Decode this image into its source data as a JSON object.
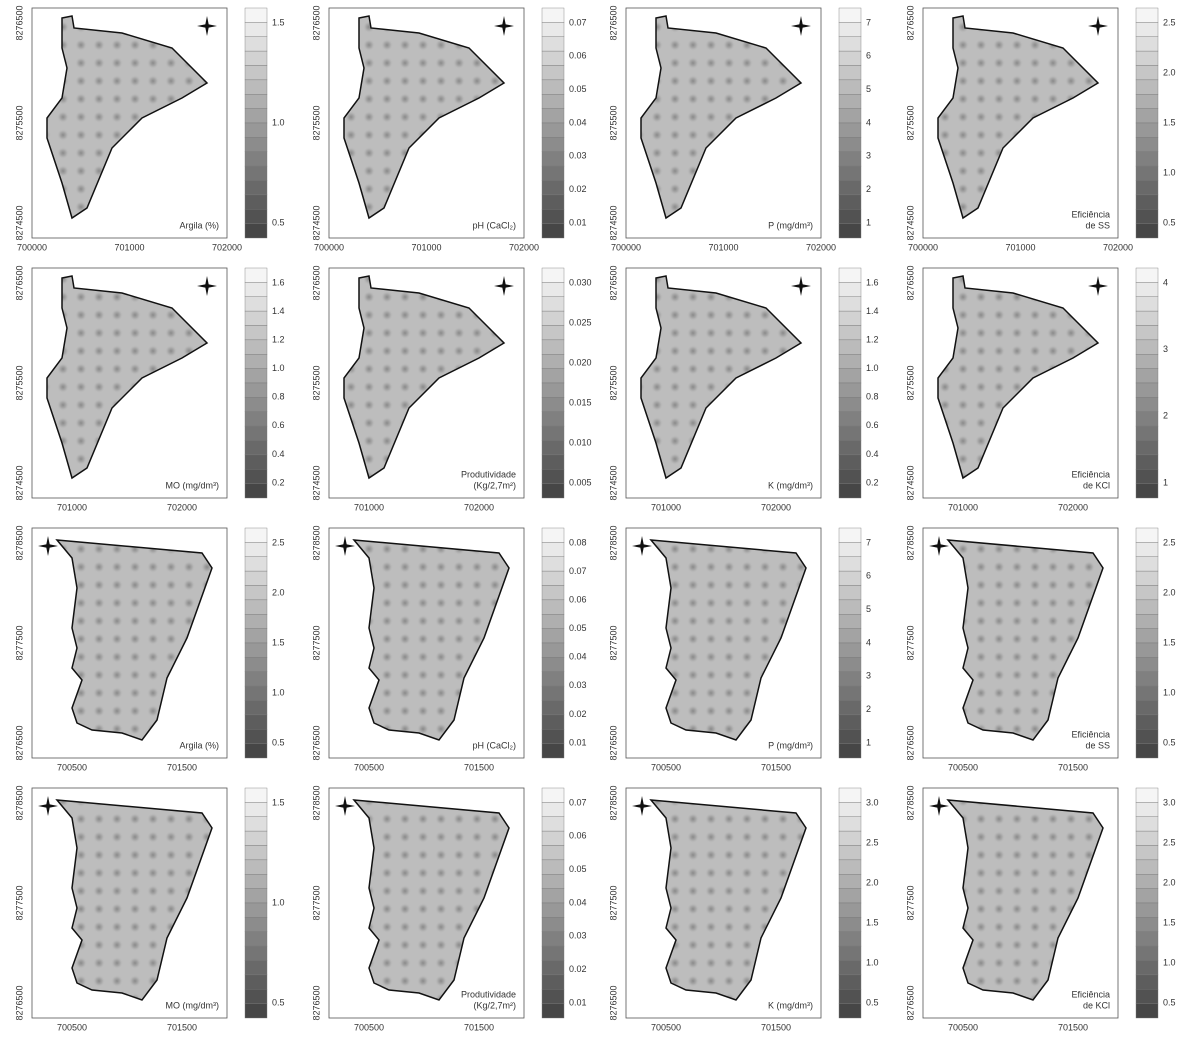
{
  "rows": [
    {
      "x_ticks": [
        "700000",
        "701000",
        "702000"
      ],
      "y_ticks": [
        "8274500",
        "8275500",
        "8276500"
      ],
      "panels": [
        {
          "label": [
            "Argila (%)"
          ],
          "scale": [
            "1.5",
            "1.0",
            "0.5"
          ]
        },
        {
          "label": [
            "pH (CaCl₂)"
          ],
          "scale": [
            "0.07",
            "0.06",
            "0.05",
            "0.04",
            "0.03",
            "0.02",
            "0.01"
          ]
        },
        {
          "label": [
            "P (mg/dm³)"
          ],
          "scale": [
            "7",
            "6",
            "5",
            "4",
            "3",
            "2",
            "1"
          ]
        },
        {
          "label": [
            "Eficiência",
            "de SS"
          ],
          "scale": [
            "2.5",
            "2.0",
            "1.5",
            "1.0",
            "0.5"
          ]
        }
      ]
    },
    {
      "x_ticks": [
        "701000",
        "702000"
      ],
      "y_ticks": [
        "8274500",
        "8275500",
        "8276500"
      ],
      "panels": [
        {
          "label": [
            "MO (mg/dm³)"
          ],
          "scale": [
            "1.6",
            "1.4",
            "1.2",
            "1.0",
            "0.8",
            "0.6",
            "0.4",
            "0.2"
          ]
        },
        {
          "label": [
            "Produtividade",
            "(Kg/2,7m²)"
          ],
          "scale": [
            "0.030",
            "0.025",
            "0.020",
            "0.015",
            "0.010",
            "0.005"
          ]
        },
        {
          "label": [
            "K (mg/dm³)"
          ],
          "scale": [
            "1.6",
            "1.4",
            "1.2",
            "1.0",
            "0.8",
            "0.6",
            "0.4",
            "0.2"
          ]
        },
        {
          "label": [
            "Eficiência",
            "de KCl"
          ],
          "scale": [
            "4",
            "3",
            "2",
            "1"
          ]
        }
      ]
    },
    {
      "x_ticks": [
        "700500",
        "701500"
      ],
      "y_ticks": [
        "8276500",
        "8277500",
        "8278500"
      ],
      "panels": [
        {
          "label": [
            "Argila (%)"
          ],
          "scale": [
            "2.5",
            "2.0",
            "1.5",
            "1.0",
            "0.5"
          ]
        },
        {
          "label": [
            "pH (CaCl₂)"
          ],
          "scale": [
            "0.08",
            "0.07",
            "0.06",
            "0.05",
            "0.04",
            "0.03",
            "0.02",
            "0.01"
          ]
        },
        {
          "label": [
            "P (mg/dm³)"
          ],
          "scale": [
            "7",
            "6",
            "5",
            "4",
            "3",
            "2",
            "1"
          ]
        },
        {
          "label": [
            "Eficiência",
            "de SS"
          ],
          "scale": [
            "2.5",
            "2.0",
            "1.5",
            "1.0",
            "0.5"
          ]
        }
      ]
    },
    {
      "x_ticks": [
        "700500",
        "701500"
      ],
      "y_ticks": [
        "8276500",
        "8277500",
        "8278500"
      ],
      "panels": [
        {
          "label": [
            "MO (mg/dm³)"
          ],
          "scale": [
            "1.5",
            "1.0",
            "0.5"
          ]
        },
        {
          "label": [
            "Produtividade",
            "(Kg/2,7m²)"
          ],
          "scale": [
            "0.07",
            "0.06",
            "0.05",
            "0.04",
            "0.03",
            "0.02",
            "0.01"
          ]
        },
        {
          "label": [
            "K (mg/dm³)"
          ],
          "scale": [
            "3.0",
            "2.5",
            "2.0",
            "1.5",
            "1.0",
            "0.5"
          ]
        },
        {
          "label": [
            "Eficiência",
            "de KCl"
          ],
          "scale": [
            "3.0",
            "2.5",
            "2.0",
            "1.5",
            "1.0",
            "0.5"
          ]
        }
      ]
    }
  ]
}
